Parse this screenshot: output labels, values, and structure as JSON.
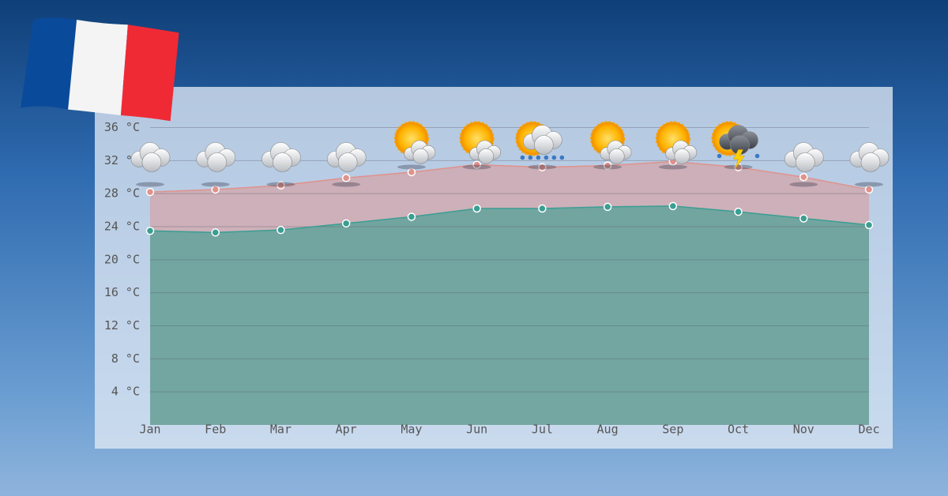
{
  "chart_data": {
    "type": "area",
    "categories": [
      "Jan",
      "Feb",
      "Mar",
      "Apr",
      "May",
      "Jun",
      "Jul",
      "Aug",
      "Sep",
      "Oct",
      "Nov",
      "Dec"
    ],
    "series": [
      {
        "color": "#e0928c",
        "values": [
          28.2,
          28.5,
          29.0,
          29.9,
          30.6,
          31.5,
          31.2,
          31.4,
          31.9,
          31.2,
          30.0,
          28.5
        ]
      },
      {
        "color": "#3a9e92",
        "values": [
          23.5,
          23.3,
          23.6,
          24.4,
          25.2,
          26.2,
          26.2,
          26.4,
          26.5,
          25.8,
          25.0,
          24.2
        ]
      }
    ],
    "ylim": [
      0,
      36
    ],
    "yticks": [
      {
        "value": 4,
        "label": "4 °C"
      },
      {
        "value": 8,
        "label": "8 °C"
      },
      {
        "value": 12,
        "label": "12 °C"
      },
      {
        "value": 16,
        "label": "16 °C"
      },
      {
        "value": 20,
        "label": "20 °C"
      },
      {
        "value": 24,
        "label": "24 °C"
      },
      {
        "value": 28,
        "label": "28 °C"
      },
      {
        "value": 32,
        "label": "32 °C"
      },
      {
        "value": 36,
        "label": "36 °C"
      }
    ],
    "grid": true
  }
}
